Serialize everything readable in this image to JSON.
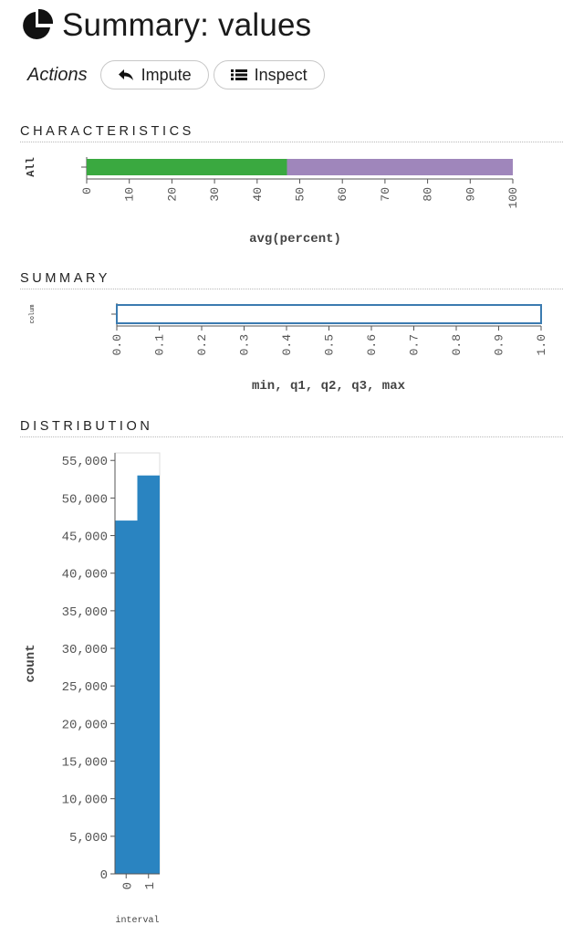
{
  "header": {
    "title": "Summary: values",
    "icon": "pie-chart-icon"
  },
  "actions": {
    "label": "Actions",
    "buttons": [
      {
        "label": "Impute",
        "icon": "reply-icon"
      },
      {
        "label": "Inspect",
        "icon": "list-icon"
      }
    ]
  },
  "sections": {
    "characteristics": "CHARACTERISTICS",
    "summary": "SUMMARY",
    "distribution": "DISTRIBUTION"
  },
  "colors": {
    "green": "#3aa940",
    "purple": "#9f86bb",
    "blue": "#2a84c1",
    "box_stroke": "#3b7bb0"
  },
  "chart_data": [
    {
      "type": "bar",
      "orientation": "horizontal-stacked",
      "categories": [
        "All"
      ],
      "series": [
        {
          "values": [
            47
          ]
        },
        {
          "values": [
            53
          ]
        }
      ],
      "xlabel": "avg(percent)",
      "xlim": [
        0,
        100
      ],
      "xticks": [
        0,
        10,
        20,
        30,
        40,
        50,
        60,
        70,
        80,
        90,
        100
      ],
      "grid": false
    },
    {
      "type": "box",
      "categories": [
        "colum"
      ],
      "stats": {
        "min": 0,
        "q1": 0,
        "q2": 1,
        "q3": 1,
        "max": 1
      },
      "xlabel": "min, q1, q2, q3, max",
      "xlim": [
        0,
        1
      ],
      "xticks": [
        "0.0",
        "0.1",
        "0.2",
        "0.3",
        "0.4",
        "0.5",
        "0.6",
        "0.7",
        "0.8",
        "0.9",
        "1.0"
      ],
      "grid": false
    },
    {
      "type": "bar",
      "categories": [
        "0",
        "1"
      ],
      "values": [
        47000,
        53000
      ],
      "xlabel": "interval",
      "ylabel": "count",
      "ylim": [
        0,
        56000
      ],
      "yticks": [
        "0",
        "5,000",
        "10,000",
        "15,000",
        "20,000",
        "25,000",
        "30,000",
        "35,000",
        "40,000",
        "45,000",
        "50,000",
        "55,000"
      ],
      "grid": false
    }
  ]
}
